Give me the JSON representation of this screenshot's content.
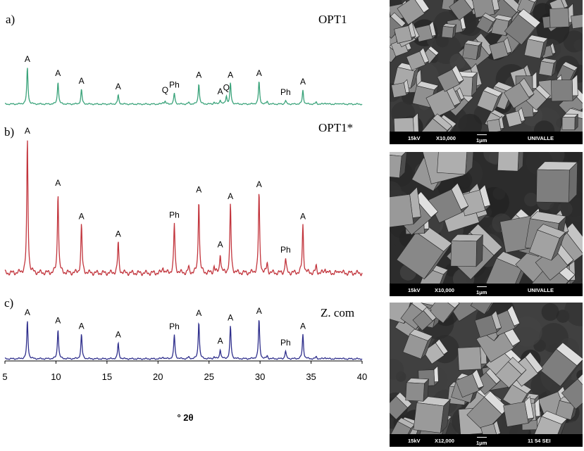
{
  "figure": {
    "panel_labels": [
      "a)",
      "b)",
      "c)"
    ],
    "sample_names": [
      "OPT1",
      "OPT1*",
      "Z. com"
    ],
    "x_axis": {
      "label": "° 2θ",
      "ticks": [
        "5",
        "10",
        "15",
        "20",
        "25",
        "30",
        "35",
        "40"
      ]
    },
    "colors": {
      "OPT1": "#3aa37a",
      "OPT1*": "#c2353d",
      "Z. com": "#2f2f8c",
      "sem_bar": "#000000"
    }
  },
  "chart_data": [
    {
      "type": "line",
      "title": "OPT1",
      "xlim": [
        5,
        40
      ],
      "xlabel": "° 2θ",
      "peaks": [
        {
          "x": 7.2,
          "y": 1.0,
          "label": "A"
        },
        {
          "x": 10.2,
          "y": 0.62,
          "label": "A"
        },
        {
          "x": 12.5,
          "y": 0.4,
          "label": "A"
        },
        {
          "x": 16.1,
          "y": 0.25,
          "label": "A"
        },
        {
          "x": 20.7,
          "y": 0.07,
          "label": "Q"
        },
        {
          "x": 21.6,
          "y": 0.3,
          "label": "Ph"
        },
        {
          "x": 24.0,
          "y": 0.57,
          "label": "A"
        },
        {
          "x": 26.1,
          "y": 0.12,
          "label": "A"
        },
        {
          "x": 26.7,
          "y": 0.22,
          "label": "Q"
        },
        {
          "x": 27.1,
          "y": 0.57,
          "label": "A"
        },
        {
          "x": 29.9,
          "y": 0.62,
          "label": "A"
        },
        {
          "x": 32.5,
          "y": 0.1,
          "label": "Ph"
        },
        {
          "x": 34.2,
          "y": 0.38,
          "label": "A"
        }
      ]
    },
    {
      "type": "line",
      "title": "OPT1*",
      "xlim": [
        5,
        40
      ],
      "xlabel": "° 2θ",
      "peaks": [
        {
          "x": 7.2,
          "y": 1.0,
          "label": "A"
        },
        {
          "x": 10.2,
          "y": 0.61,
          "label": "A"
        },
        {
          "x": 12.5,
          "y": 0.36,
          "label": "A"
        },
        {
          "x": 16.1,
          "y": 0.23,
          "label": "A"
        },
        {
          "x": 21.6,
          "y": 0.37,
          "label": "Ph"
        },
        {
          "x": 24.0,
          "y": 0.56,
          "label": "A"
        },
        {
          "x": 26.1,
          "y": 0.15,
          "label": "A"
        },
        {
          "x": 27.1,
          "y": 0.51,
          "label": "A"
        },
        {
          "x": 29.9,
          "y": 0.6,
          "label": "A"
        },
        {
          "x": 32.5,
          "y": 0.11,
          "label": "Ph"
        },
        {
          "x": 34.2,
          "y": 0.36,
          "label": "A"
        }
      ]
    },
    {
      "type": "line",
      "title": "Z. com",
      "xlim": [
        5,
        40
      ],
      "xlabel": "° 2θ",
      "peaks": [
        {
          "x": 7.2,
          "y": 0.96,
          "label": "A"
        },
        {
          "x": 10.2,
          "y": 0.76,
          "label": "A"
        },
        {
          "x": 12.5,
          "y": 0.62,
          "label": "A"
        },
        {
          "x": 16.1,
          "y": 0.4,
          "label": "A"
        },
        {
          "x": 21.6,
          "y": 0.61,
          "label": "Ph"
        },
        {
          "x": 24.0,
          "y": 0.95,
          "label": "A"
        },
        {
          "x": 26.1,
          "y": 0.24,
          "label": "A"
        },
        {
          "x": 27.1,
          "y": 0.83,
          "label": "A"
        },
        {
          "x": 29.9,
          "y": 1.0,
          "label": "A"
        },
        {
          "x": 32.5,
          "y": 0.2,
          "label": "Ph"
        },
        {
          "x": 34.2,
          "y": 0.62,
          "label": "A"
        }
      ]
    }
  ],
  "sem": [
    {
      "kv": "15kV",
      "mag": "X10,000",
      "scale": "1μm",
      "lab": "UNIVALLE"
    },
    {
      "kv": "15kV",
      "mag": "X10,000",
      "scale": "1μm",
      "lab": "UNIVALLE"
    },
    {
      "kv": "15kV",
      "mag": "X12,000",
      "scale": "1μm",
      "lab": "11 54 SEI"
    }
  ]
}
